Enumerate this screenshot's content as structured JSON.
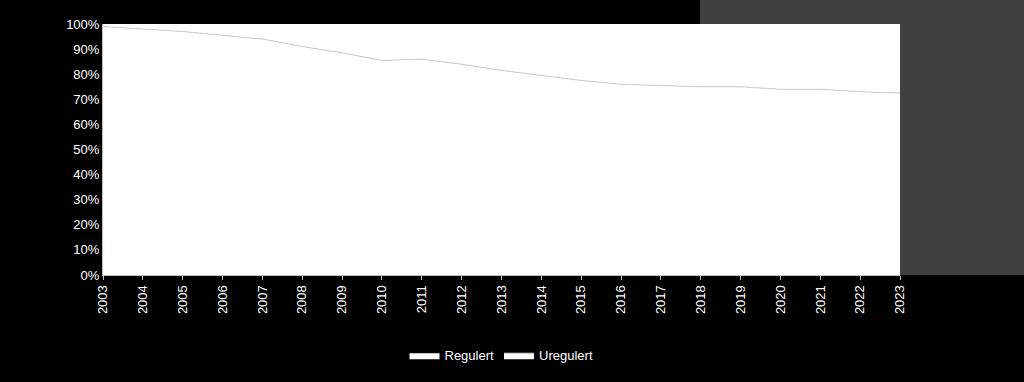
{
  "chart_data": {
    "type": "area",
    "stacked": true,
    "x": [
      2003,
      2004,
      2005,
      2006,
      2007,
      2008,
      2009,
      2010,
      2011,
      2012,
      2013,
      2014,
      2015,
      2016,
      2017,
      2018,
      2019,
      2020,
      2021,
      2022,
      2023
    ],
    "series": [
      {
        "name": "Uregulert",
        "color": "#ffffff",
        "values": [
          99,
          98,
          97,
          95.5,
          94,
          91,
          88.5,
          85.5,
          86,
          84,
          81.5,
          79.5,
          77.5,
          76,
          75.5,
          75,
          75,
          74,
          74,
          73,
          72.5
        ]
      },
      {
        "name": "Regulert",
        "color": "#ffffff",
        "values": [
          1,
          2,
          3,
          4.5,
          6,
          9,
          11.5,
          14.5,
          14,
          16,
          18.5,
          20.5,
          22.5,
          24,
          24.5,
          25,
          25,
          26,
          26,
          27,
          27.5
        ]
      }
    ],
    "xlim": [
      2003,
      2023
    ],
    "xticks": [
      2003,
      2004,
      2005,
      2006,
      2007,
      2008,
      2009,
      2010,
      2011,
      2012,
      2013,
      2014,
      2015,
      2016,
      2017,
      2018,
      2019,
      2020,
      2021,
      2022,
      2023
    ],
    "ylim": [
      0,
      100
    ],
    "yticks": [
      {
        "value": 0,
        "label": "0%"
      },
      {
        "value": 10,
        "label": "10%"
      },
      {
        "value": 20,
        "label": "20%"
      },
      {
        "value": 30,
        "label": "30%"
      },
      {
        "value": 40,
        "label": "40%"
      },
      {
        "value": 50,
        "label": "50%"
      },
      {
        "value": 60,
        "label": "60%"
      },
      {
        "value": 70,
        "label": "70%"
      },
      {
        "value": 80,
        "label": "80%"
      },
      {
        "value": 90,
        "label": "90%"
      },
      {
        "value": 100,
        "label": "100%"
      }
    ],
    "grid": false,
    "legend": "bottom"
  }
}
